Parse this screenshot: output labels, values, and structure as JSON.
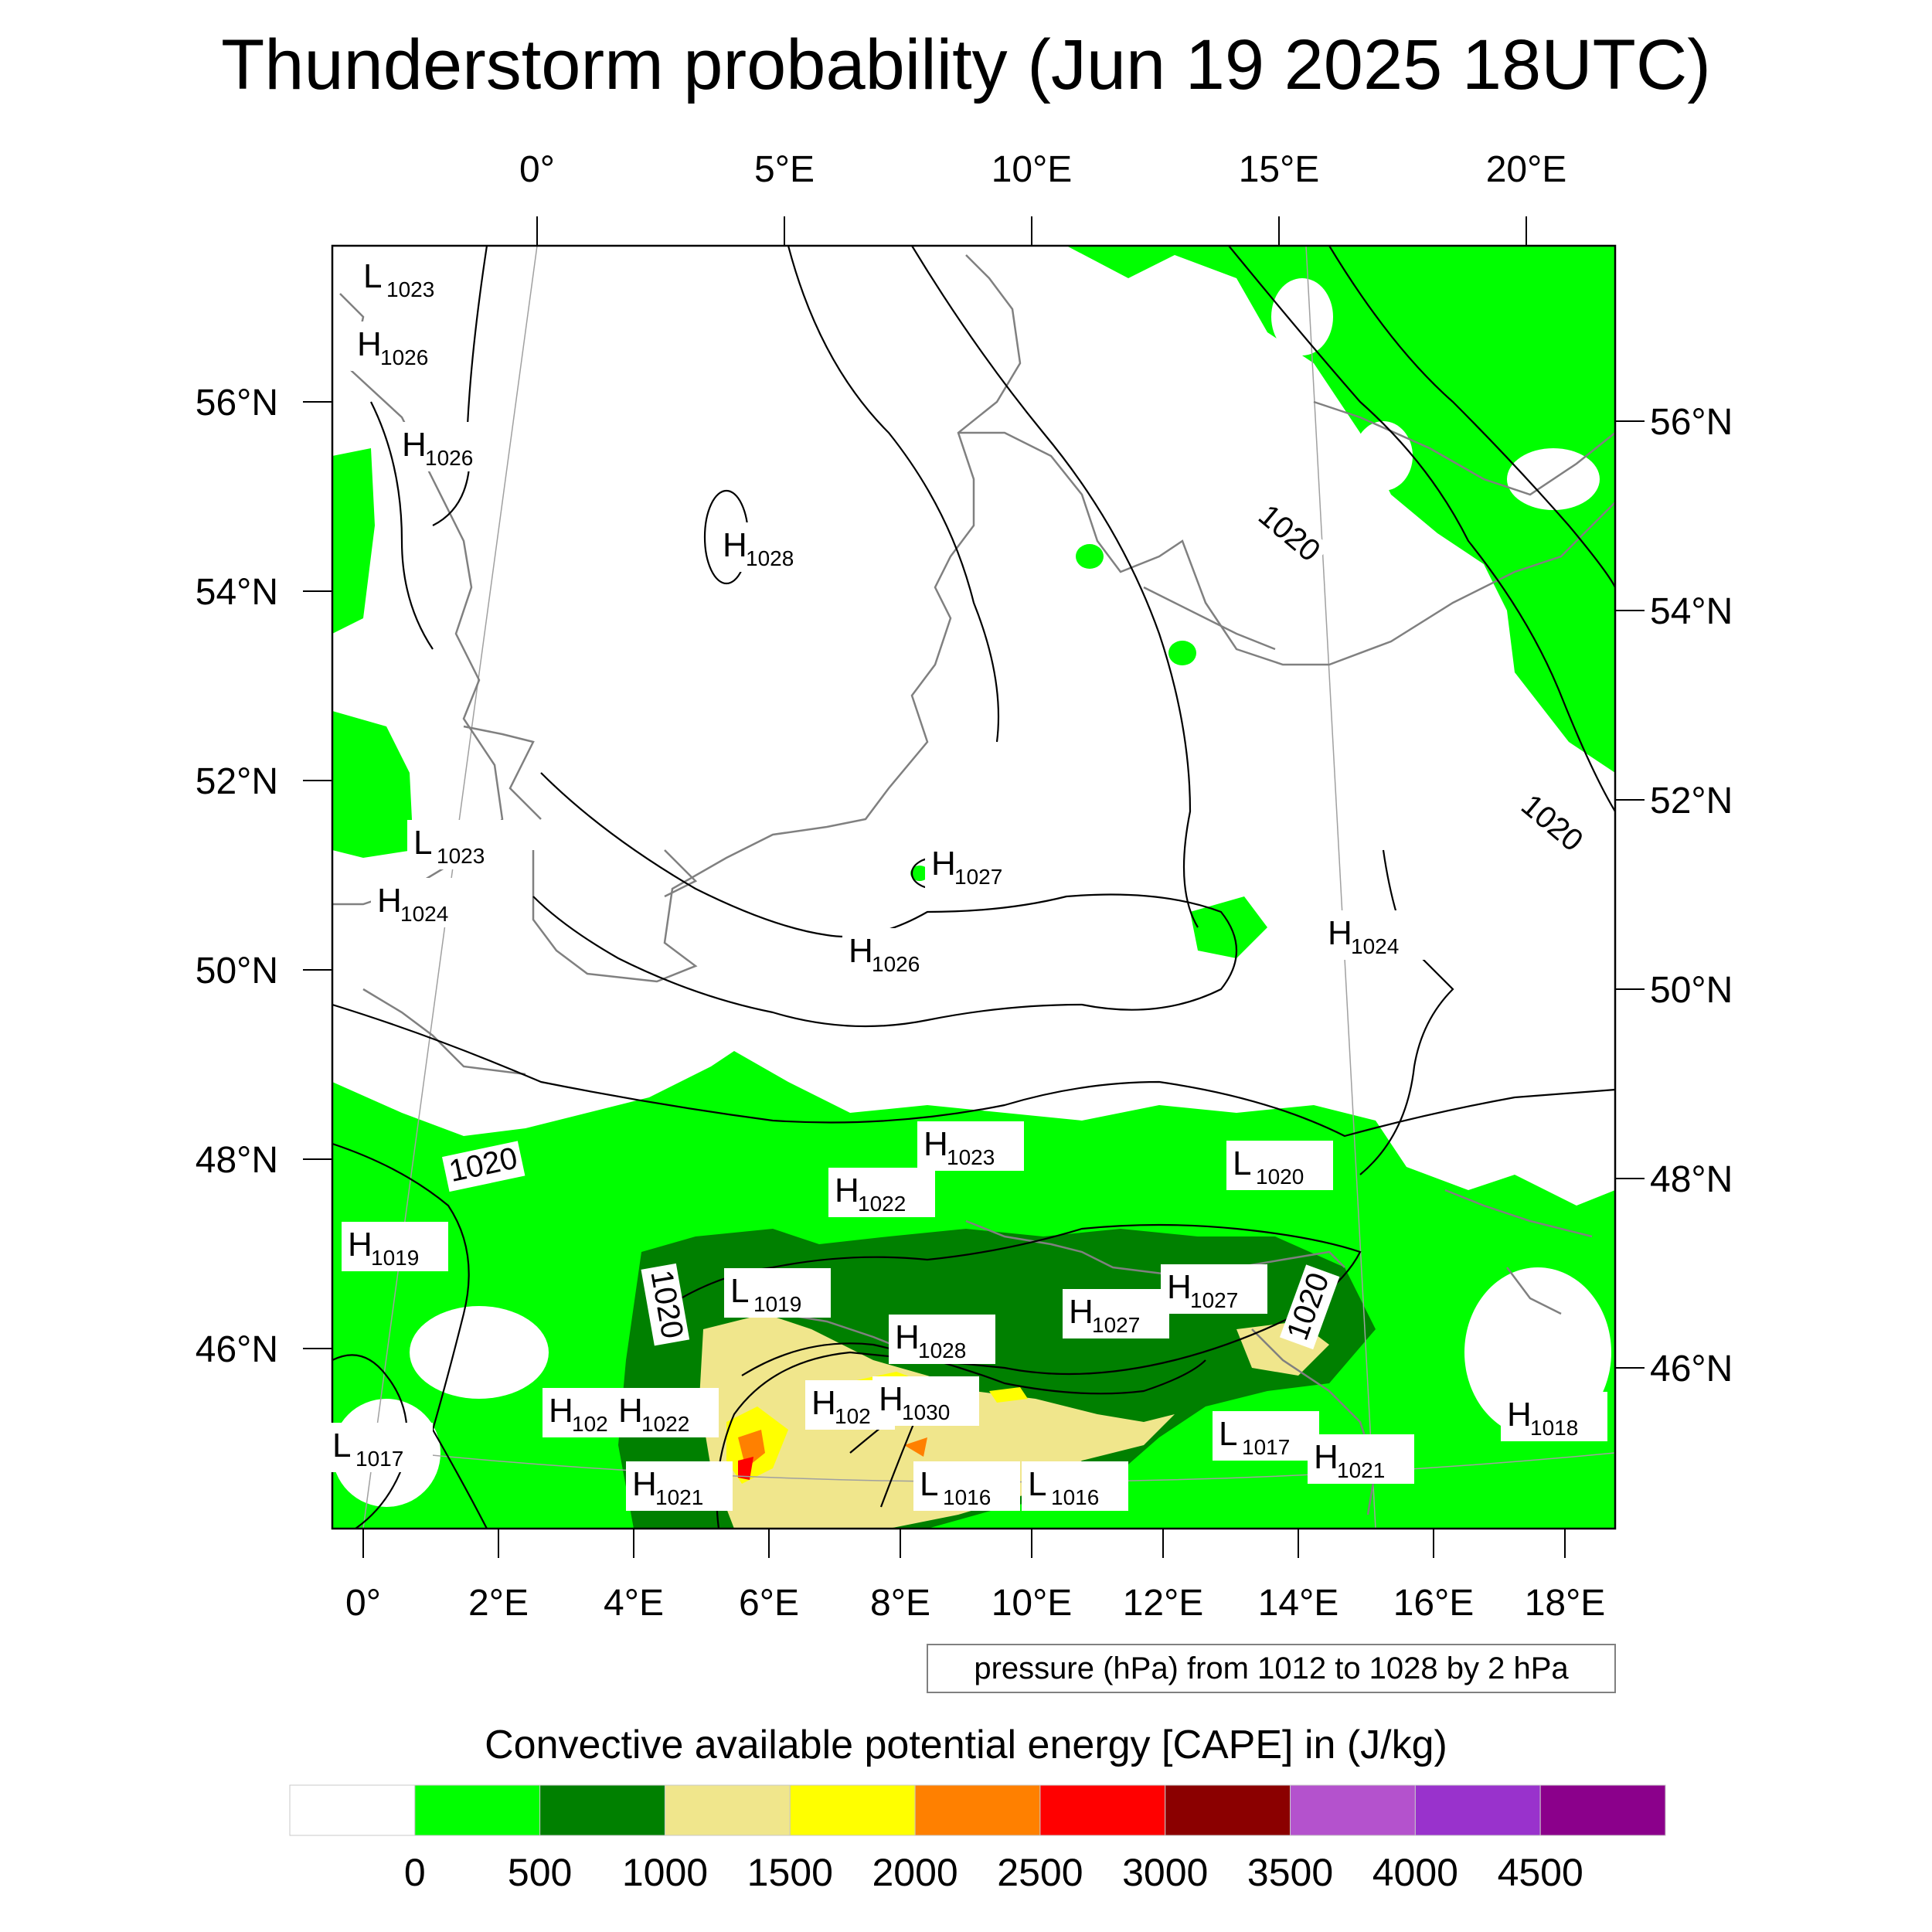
{
  "title": "Thunderstorm probability (Jun 19 2025 18UTC)",
  "top_lon_labels": [
    "0°",
    "5°E",
    "10°E",
    "15°E",
    "20°E"
  ],
  "bottom_lon_labels": [
    "0°",
    "2°E",
    "4°E",
    "6°E",
    "8°E",
    "10°E",
    "12°E",
    "14°E",
    "16°E",
    "18°E"
  ],
  "left_lat_labels": [
    "56°N",
    "54°N",
    "52°N",
    "50°N",
    "48°N",
    "46°N"
  ],
  "right_lat_labels": [
    "56°N",
    "54°N",
    "52°N",
    "50°N",
    "48°N",
    "46°N"
  ],
  "pressure_note": "pressure (hPa) from 1012 to 1028 by 2 hPa",
  "contour_labels": [
    "1020",
    "1020",
    "1020",
    "1020",
    "1020"
  ],
  "pressure_centers": [
    {
      "type": "L",
      "value": "1023"
    },
    {
      "type": "H",
      "value": "1026"
    },
    {
      "type": "H",
      "value": "1026"
    },
    {
      "type": "H",
      "value": "1028"
    },
    {
      "type": "L",
      "value": "1023"
    },
    {
      "type": "H",
      "value": "1024"
    },
    {
      "type": "H",
      "value": "1027"
    },
    {
      "type": "H",
      "value": "1026"
    },
    {
      "type": "H",
      "value": "1024"
    },
    {
      "type": "H",
      "value": "1023"
    },
    {
      "type": "L",
      "value": "1020"
    },
    {
      "type": "H",
      "value": "1022"
    },
    {
      "type": "H",
      "value": "1019"
    },
    {
      "type": "L",
      "value": "1019"
    },
    {
      "type": "H",
      "value": "1027"
    },
    {
      "type": "H",
      "value": "1027"
    },
    {
      "type": "H",
      "value": "1028"
    },
    {
      "type": "H",
      "value": "102"
    },
    {
      "type": "H",
      "value": "1022"
    },
    {
      "type": "H",
      "value": "102"
    },
    {
      "type": "H",
      "value": "1030"
    },
    {
      "type": "L",
      "value": "1017"
    },
    {
      "type": "H",
      "value": "1018"
    },
    {
      "type": "L",
      "value": "1017"
    },
    {
      "type": "H",
      "value": "1021"
    },
    {
      "type": "H",
      "value": "1021"
    },
    {
      "type": "L",
      "value": "1016"
    },
    {
      "type": "L",
      "value": "1016"
    }
  ],
  "colorbar": {
    "title": "Convective available potential energy [CAPE] in (J/kg)",
    "colors": [
      "#ffffff",
      "#00ff00",
      "#008000",
      "#f0e68c",
      "#ffff00",
      "#ff8000",
      "#ff0000",
      "#8b0000",
      "#b452cd",
      "#9932cc",
      "#8b008b"
    ],
    "tick_labels": [
      "0",
      "500",
      "1000",
      "1500",
      "2000",
      "2500",
      "3000",
      "3500",
      "4000",
      "4500"
    ]
  },
  "colors": {
    "cape_low": "#00ff00",
    "cape_mid": "#008000",
    "cape_khaki": "#f0e68c",
    "cape_yellow": "#ffff00",
    "cape_orange": "#ff8000",
    "cape_red": "#ff0000",
    "coastline": "#808080",
    "isobar": "#000000"
  }
}
